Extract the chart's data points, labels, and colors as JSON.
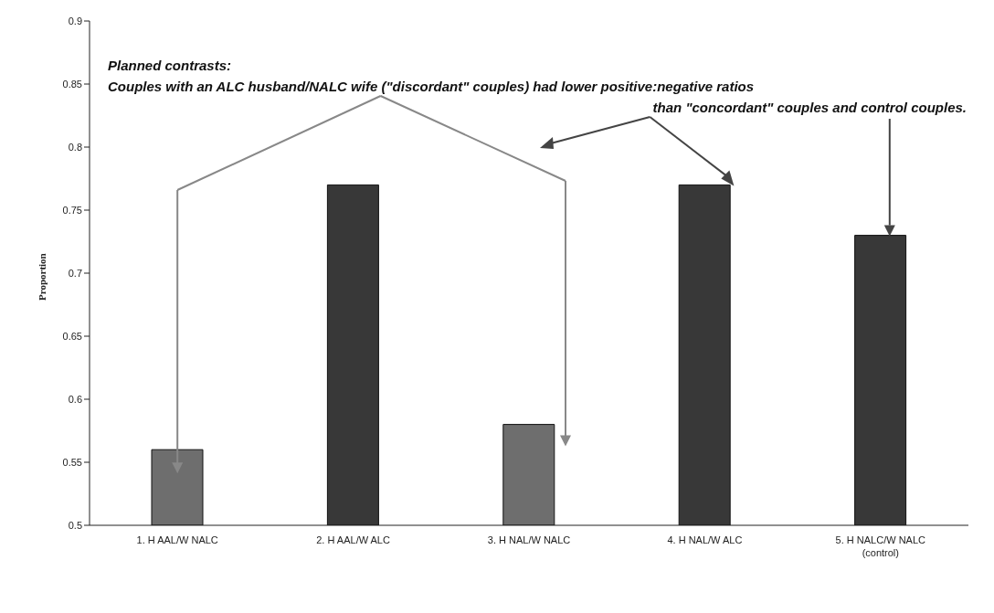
{
  "chart_data": {
    "type": "bar",
    "ylabel": "Proportion",
    "categories": [
      "1. H AAL/W NALC",
      "2. H AAL/W ALC",
      "3. H NAL/W NALC",
      "4. H NAL/W ALC",
      "5. H NALC/W NALC\n(control)"
    ],
    "values": [
      0.56,
      0.77,
      0.58,
      0.77,
      0.73
    ],
    "colors": [
      "#6e6e6e",
      "#383838",
      "#6e6e6e",
      "#383838",
      "#383838"
    ],
    "ylim": [
      0.5,
      0.9
    ],
    "yticks": [
      0.5,
      0.55,
      0.6,
      0.65,
      0.7,
      0.75,
      0.8,
      0.85,
      0.9
    ],
    "annotations": [
      "Planned contrasts:",
      "Couples with an ALC husband/NALC wife (\"discordant\" couples) had lower positive:negative ratios",
      "than \"concordant\" couples and control couples."
    ]
  }
}
